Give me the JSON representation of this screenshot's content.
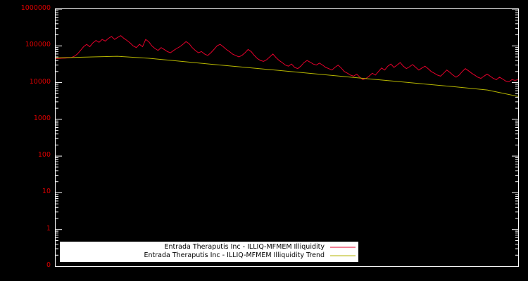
{
  "chart": {
    "background": "#000000",
    "border_color": "#ffffff",
    "tick_label_color": "#dd0000",
    "y_tick_labels": [
      "1000000",
      "100000",
      "10000",
      "1000",
      "100",
      "10",
      "1",
      "0"
    ]
  },
  "chart_data": {
    "type": "line",
    "title": "",
    "xlabel": "",
    "ylabel": "",
    "y_scale": "log",
    "ylim": [
      0.1,
      1000000
    ],
    "grid": false,
    "legend_position": "bottom-center",
    "series": [
      {
        "name": "Entrada Theraputis Inc - ILLIQ-MFMEM Illiquidity",
        "color": "#e4002b",
        "values": [
          45000,
          45500,
          46000,
          46500,
          47000,
          48000,
          52000,
          60000,
          75000,
          95000,
          110000,
          95000,
          120000,
          140000,
          125000,
          150000,
          135000,
          160000,
          180000,
          150000,
          170000,
          190000,
          160000,
          140000,
          120000,
          100000,
          90000,
          110000,
          95000,
          150000,
          130000,
          100000,
          85000,
          75000,
          90000,
          80000,
          70000,
          65000,
          75000,
          85000,
          95000,
          110000,
          130000,
          115000,
          90000,
          75000,
          65000,
          70000,
          60000,
          55000,
          65000,
          80000,
          100000,
          110000,
          95000,
          80000,
          70000,
          60000,
          55000,
          50000,
          55000,
          65000,
          80000,
          70000,
          55000,
          45000,
          40000,
          38000,
          42000,
          50000,
          60000,
          48000,
          40000,
          35000,
          30000,
          28000,
          32000,
          26000,
          24000,
          28000,
          35000,
          40000,
          36000,
          32000,
          30000,
          34000,
          30000,
          26000,
          24000,
          22000,
          26000,
          30000,
          25000,
          20000,
          18000,
          16000,
          15000,
          17000,
          14000,
          12000,
          13000,
          15000,
          18000,
          16000,
          20000,
          25000,
          22000,
          28000,
          32000,
          26000,
          30000,
          35000,
          28000,
          24000,
          27000,
          31000,
          26000,
          22000,
          25000,
          28000,
          24000,
          20000,
          18000,
          16000,
          15000,
          18000,
          22000,
          19000,
          16000,
          14000,
          16000,
          20000,
          24000,
          21000,
          18000,
          16000,
          14000,
          13000,
          15000,
          17000,
          15000,
          13000,
          12000,
          14000,
          12500,
          11000,
          10500,
          12000,
          11500,
          12000
        ]
      },
      {
        "name": "Entrada Theraputis Inc - ILLIQ-MFMEM Illiquidity Trend",
        "color": "#b5b500",
        "values": [
          47000,
          49500,
          52000,
          46000,
          38500,
          32000,
          26800,
          22400,
          18700,
          15600,
          13000,
          10900,
          9100,
          7600,
          6300,
          4200
        ]
      }
    ]
  }
}
